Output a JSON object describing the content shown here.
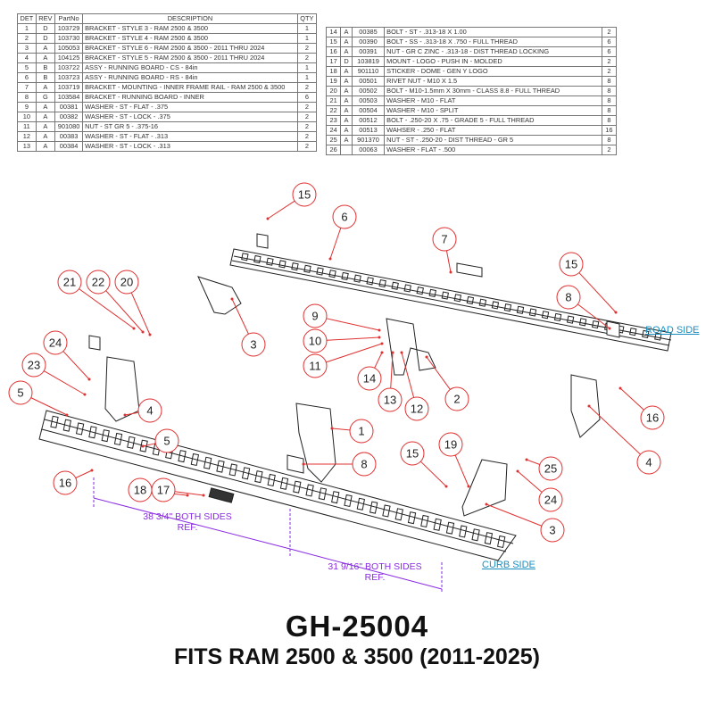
{
  "bom_left": {
    "headers": [
      "DET",
      "REV",
      "PartNo",
      "DESCRIPTION",
      "QTY"
    ],
    "rows": [
      [
        "1",
        "D",
        "103729",
        "BRACKET - STYLE 3 - RAM 2500 & 3500",
        "1"
      ],
      [
        "2",
        "D",
        "103730",
        "BRACKET - STYLE 4 - RAM 2500 & 3500",
        "1"
      ],
      [
        "3",
        "A",
        "105053",
        "BRACKET - STYLE 6 - RAM 2500 & 3500 - 2011 THRU 2024",
        "2"
      ],
      [
        "4",
        "A",
        "104125",
        "BRACKET - STYLE 5 - RAM 2500 & 3500 - 2011 THRU 2024",
        "2"
      ],
      [
        "5",
        "B",
        "103722",
        "ASSY - RUNNING BOARD - CS - 84in",
        "1"
      ],
      [
        "6",
        "B",
        "103723",
        "ASSY - RUNNING BOARD - RS - 84in",
        "1"
      ],
      [
        "7",
        "A",
        "103719",
        "BRACKET - MOUNTING - INNER FRAME RAIL - RAM 2500 & 3500",
        "2"
      ],
      [
        "8",
        "G",
        "103584",
        "BRACKET - RUNNING BOARD - INNER",
        "6"
      ],
      [
        "9",
        "A",
        "00381",
        "WASHER - ST - FLAT - .375",
        "2"
      ],
      [
        "10",
        "A",
        "00382",
        "WASHER - ST - LOCK - .375",
        "2"
      ],
      [
        "11",
        "A",
        "901080",
        "NUT - ST GR 5 - .375-16",
        "2"
      ],
      [
        "12",
        "A",
        "00383",
        "WASHER - ST - FLAT - .313",
        "2"
      ],
      [
        "13",
        "A",
        "00384",
        "WASHER - ST - LOCK - .313",
        "2"
      ]
    ]
  },
  "bom_right": {
    "rows": [
      [
        "14",
        "A",
        "00385",
        "BOLT - ST - .313-18 X 1.00",
        "2"
      ],
      [
        "15",
        "A",
        "00390",
        "BOLT - SS - .313-18 X .750 - FULL THREAD",
        "6"
      ],
      [
        "16",
        "A",
        "00391",
        "NUT - GR C ZINC - .313-18 - DIST THREAD LOCKING",
        "6"
      ],
      [
        "17",
        "D",
        "103819",
        "MOUNT - LOGO - PUSH IN - MOLDED",
        "2"
      ],
      [
        "18",
        "A",
        "901110",
        "STICKER - DOME - GEN Y LOGO",
        "2"
      ],
      [
        "19",
        "A",
        "00501",
        "RIVET NUT - M10 X 1.5",
        "8"
      ],
      [
        "20",
        "A",
        "00502",
        "BOLT - M10-1.5mm X 30mm - CLASS 8.8 - FULL THREAD",
        "8"
      ],
      [
        "21",
        "A",
        "00503",
        "WASHER - M10 - FLAT",
        "8"
      ],
      [
        "22",
        "A",
        "00504",
        "WASHER - M10 - SPLIT",
        "8"
      ],
      [
        "23",
        "A",
        "00512",
        "BOLT - .250-20 X .75 - GRADE 5 - FULL THREAD",
        "8"
      ],
      [
        "24",
        "A",
        "00513",
        "WAHSER - .250 - FLAT",
        "16"
      ],
      [
        "25",
        "A",
        "901370",
        "NUT - ST - .250-20 - DIST THREAD - GR 5",
        "8"
      ],
      [
        "26",
        "",
        "00063",
        "WASHER - FLAT - .500",
        "2"
      ]
    ]
  },
  "callouts": [
    "15",
    "6",
    "7",
    "15",
    "8",
    "21",
    "22",
    "20",
    "3",
    "9",
    "10",
    "11",
    "14",
    "13",
    "12",
    "2",
    "24",
    "23",
    "5",
    "4",
    "5",
    "1",
    "8",
    "16",
    "4",
    "19",
    "15",
    "25",
    "24",
    "3",
    "16",
    "18",
    "17"
  ],
  "dimensions": {
    "dim1": {
      "line1": "38 3/4\" BOTH SIDES",
      "line2": "REF."
    },
    "dim2": {
      "line1": "31 9/16\" BOTH SIDES",
      "line2": "REF."
    }
  },
  "labels": {
    "road_side": "ROAD SIDE",
    "curb_side": "CURB SIDE"
  },
  "title": "GH-25004",
  "subtitle": "FITS RAM 2500 & 3500 (2011-2025)",
  "colors": {
    "callout": "#e03030",
    "dimension": "#8a2be2",
    "side_label": "#1a8fbf"
  }
}
